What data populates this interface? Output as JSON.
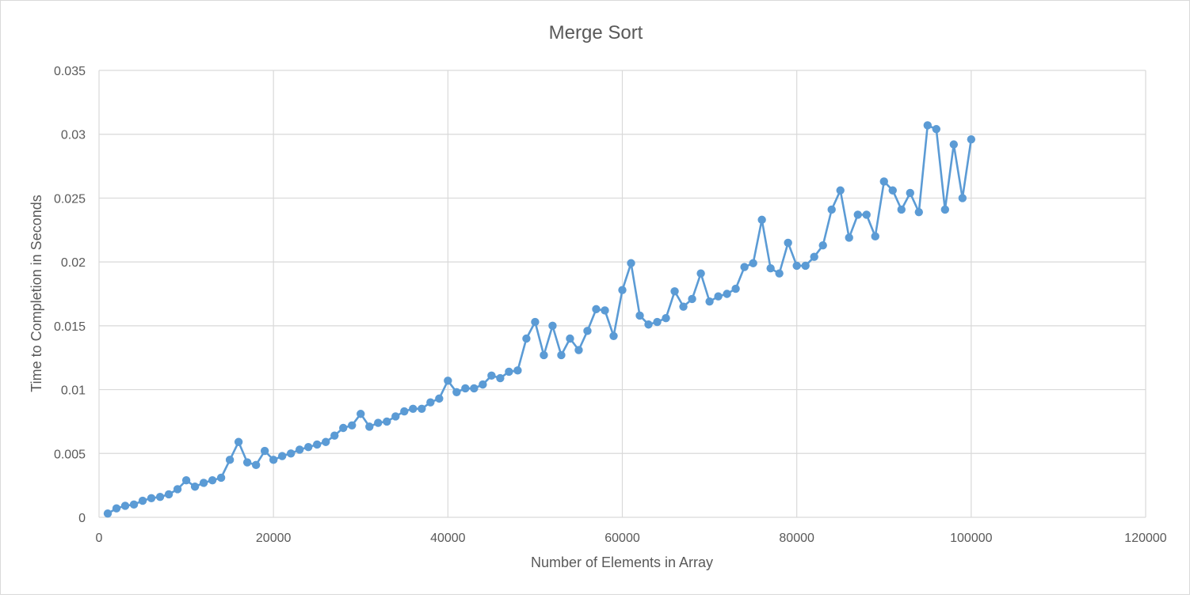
{
  "chart_data": {
    "type": "scatter",
    "title": "Merge Sort",
    "xlabel": "Number of Elements in Array",
    "ylabel": "Time to Completion in Seconds",
    "xlim": [
      0,
      120000
    ],
    "ylim": [
      0,
      0.035
    ],
    "x_ticks": [
      "0",
      "20000",
      "40000",
      "60000",
      "80000",
      "100000",
      "120000"
    ],
    "y_ticks": [
      "0",
      "0.005",
      "0.01",
      "0.015",
      "0.02",
      "0.025",
      "0.03",
      "0.035"
    ],
    "grid": true,
    "legend": "none",
    "markers": true,
    "lines": true,
    "series_color": "#5b9bd5",
    "grid_color": "#d9d9d9",
    "series": [
      {
        "x": [
          1000,
          2000,
          3000,
          4000,
          5000,
          6000,
          7000,
          8000,
          9000,
          10000,
          11000,
          12000,
          13000,
          14000,
          15000,
          16000,
          17000,
          18000,
          19000,
          20000,
          21000,
          22000,
          23000,
          24000,
          25000,
          26000,
          27000,
          28000,
          29000,
          30000,
          31000,
          32000,
          33000,
          34000,
          35000,
          36000,
          37000,
          38000,
          39000,
          40000,
          41000,
          42000,
          43000,
          44000,
          45000,
          46000,
          47000,
          48000,
          49000,
          50000,
          51000,
          52000,
          53000,
          54000,
          55000,
          56000,
          57000,
          58000,
          59000,
          60000,
          61000,
          62000,
          63000,
          64000,
          65000,
          66000,
          67000,
          68000,
          69000,
          70000,
          71000,
          72000,
          73000,
          74000,
          75000,
          76000,
          77000,
          78000,
          79000,
          80000,
          81000,
          82000,
          83000,
          84000,
          85000,
          86000,
          87000,
          88000,
          89000,
          90000,
          91000,
          92000,
          93000,
          94000,
          95000,
          96000,
          97000,
          98000,
          99000,
          100000
        ],
        "y": [
          0.0003,
          0.0007,
          0.0009,
          0.001,
          0.0013,
          0.0015,
          0.0016,
          0.0018,
          0.0022,
          0.0029,
          0.0024,
          0.0027,
          0.0029,
          0.0031,
          0.0045,
          0.0059,
          0.0043,
          0.0041,
          0.0052,
          0.0045,
          0.0048,
          0.005,
          0.0053,
          0.0055,
          0.0057,
          0.0059,
          0.0064,
          0.007,
          0.0072,
          0.0081,
          0.0071,
          0.0074,
          0.0075,
          0.0079,
          0.0083,
          0.0085,
          0.0085,
          0.009,
          0.0093,
          0.0107,
          0.0098,
          0.0101,
          0.0101,
          0.0104,
          0.0111,
          0.0109,
          0.0114,
          0.0115,
          0.014,
          0.0153,
          0.0127,
          0.015,
          0.0127,
          0.014,
          0.0131,
          0.0146,
          0.0163,
          0.0162,
          0.0142,
          0.0178,
          0.0199,
          0.0158,
          0.0151,
          0.0153,
          0.0156,
          0.0177,
          0.0165,
          0.0171,
          0.0191,
          0.0169,
          0.0173,
          0.0175,
          0.0179,
          0.0196,
          0.0199,
          0.0233,
          0.0195,
          0.0191,
          0.0215,
          0.0197,
          0.0197,
          0.0204,
          0.0213,
          0.0241,
          0.0256,
          0.0219,
          0.0237,
          0.0237,
          0.022,
          0.0263,
          0.0256,
          0.0241,
          0.0254,
          0.0239,
          0.0307,
          0.0304,
          0.0241,
          0.0292,
          0.025,
          0.0296
        ]
      }
    ]
  }
}
